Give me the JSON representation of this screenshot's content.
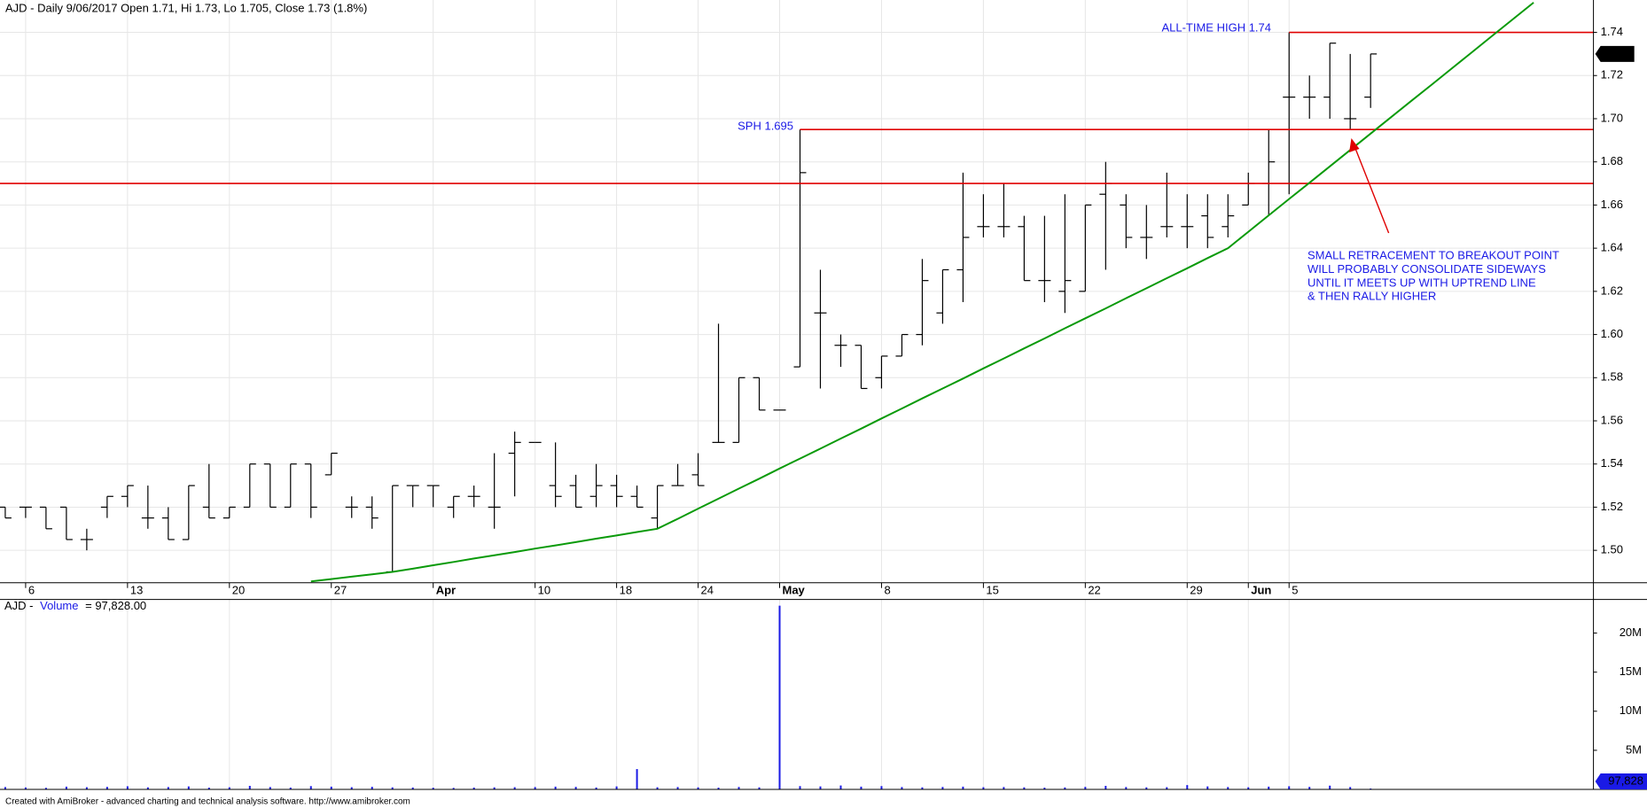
{
  "chart_data": [
    {
      "type": "ohlc",
      "title": "AJD - Daily 9/06/2017 Open 1.71, Hi 1.73, Lo 1.705, Close 1.73 (1.8%)",
      "categories": [
        null,
        "6",
        null,
        null,
        null,
        null,
        "13",
        null,
        null,
        null,
        null,
        "20",
        null,
        null,
        null,
        null,
        "27",
        null,
        null,
        null,
        null,
        "Apr",
        null,
        null,
        null,
        null,
        "10",
        null,
        null,
        null,
        "18",
        null,
        null,
        null,
        "24",
        null,
        null,
        null,
        "May",
        null,
        null,
        null,
        null,
        "8",
        null,
        null,
        null,
        null,
        "15",
        null,
        null,
        null,
        null,
        "22",
        null,
        null,
        null,
        null,
        "29",
        null,
        null,
        "Jun",
        null,
        "5",
        null,
        null,
        null,
        null,
        null,
        null,
        null,
        null,
        null,
        null,
        null,
        null,
        null,
        null
      ],
      "open": [
        1.52,
        1.52,
        1.52,
        1.52,
        1.505,
        1.52,
        1.525,
        1.515,
        1.515,
        1.505,
        1.52,
        1.515,
        1.52,
        1.54,
        1.52,
        1.54,
        1.535,
        1.52,
        1.52,
        1.49,
        1.53,
        1.53,
        1.52,
        1.525,
        1.52,
        1.545,
        1.55,
        1.53,
        1.53,
        1.525,
        1.53,
        1.525,
        1.515,
        1.53,
        1.535,
        1.55,
        1.55,
        1.58,
        1.565,
        1.585,
        1.61,
        1.595,
        1.595,
        1.58,
        1.59,
        1.6,
        1.61,
        1.63,
        1.65,
        1.65,
        1.65,
        1.625,
        1.62,
        1.62,
        1.665,
        1.66,
        1.645,
        1.65,
        1.65,
        1.655,
        1.65,
        1.66,
        1.67,
        1.71,
        1.71,
        1.71,
        1.7,
        1.71,
        null,
        null,
        null,
        null,
        null,
        null,
        null,
        null,
        null,
        null
      ],
      "high": [
        1.52,
        1.52,
        1.52,
        1.52,
        1.51,
        1.525,
        1.53,
        1.53,
        1.52,
        1.53,
        1.54,
        1.52,
        1.54,
        1.54,
        1.54,
        1.54,
        1.545,
        1.525,
        1.525,
        1.53,
        1.53,
        1.53,
        1.525,
        1.53,
        1.545,
        1.555,
        1.55,
        1.55,
        1.535,
        1.54,
        1.535,
        1.53,
        1.53,
        1.54,
        1.545,
        1.605,
        1.58,
        1.58,
        1.565,
        1.695,
        1.63,
        1.6,
        1.595,
        1.59,
        1.6,
        1.635,
        1.63,
        1.675,
        1.665,
        1.67,
        1.655,
        1.655,
        1.665,
        1.66,
        1.68,
        1.665,
        1.66,
        1.675,
        1.665,
        1.665,
        1.665,
        1.675,
        1.695,
        1.74,
        1.72,
        1.735,
        1.73,
        1.73,
        null,
        null,
        null,
        null,
        null,
        null,
        null,
        null,
        null,
        null
      ],
      "low": [
        1.515,
        1.515,
        1.51,
        1.505,
        1.5,
        1.515,
        1.52,
        1.51,
        1.505,
        1.505,
        1.515,
        1.515,
        1.52,
        1.52,
        1.52,
        1.515,
        1.535,
        1.515,
        1.51,
        1.49,
        1.52,
        1.52,
        1.515,
        1.52,
        1.51,
        1.525,
        1.55,
        1.52,
        1.52,
        1.52,
        1.52,
        1.52,
        1.51,
        1.53,
        1.53,
        1.55,
        1.55,
        1.565,
        1.565,
        1.585,
        1.575,
        1.585,
        1.575,
        1.575,
        1.59,
        1.595,
        1.605,
        1.615,
        1.645,
        1.645,
        1.625,
        1.615,
        1.61,
        1.62,
        1.63,
        1.64,
        1.635,
        1.645,
        1.64,
        1.64,
        1.645,
        1.66,
        1.655,
        1.665,
        1.7,
        1.7,
        1.695,
        1.705,
        null,
        null,
        null,
        null,
        null,
        null,
        null,
        null,
        null,
        null
      ],
      "close": [
        1.515,
        1.52,
        1.51,
        1.505,
        1.505,
        1.525,
        1.53,
        1.515,
        1.505,
        1.53,
        1.515,
        1.52,
        1.54,
        1.52,
        1.54,
        1.52,
        1.545,
        1.52,
        1.515,
        1.53,
        1.53,
        1.53,
        1.525,
        1.525,
        1.52,
        1.55,
        1.55,
        1.525,
        1.52,
        1.53,
        1.525,
        1.52,
        1.53,
        1.53,
        1.53,
        1.55,
        1.58,
        1.565,
        1.565,
        1.675,
        1.61,
        1.595,
        1.575,
        1.59,
        1.6,
        1.625,
        1.63,
        1.645,
        1.65,
        1.65,
        1.625,
        1.625,
        1.625,
        1.66,
        1.67,
        1.645,
        1.645,
        1.65,
        1.65,
        1.645,
        1.655,
        1.67,
        1.68,
        1.71,
        1.71,
        1.735,
        1.7,
        1.73,
        null,
        null,
        null,
        null,
        null,
        null,
        null,
        null,
        null,
        null
      ],
      "color": "#000000",
      "trendline": {
        "color": "#0a9a0a",
        "values": [
          null,
          null,
          null,
          null,
          null,
          null,
          null,
          null,
          null,
          null,
          null,
          null,
          null,
          null,
          null,
          1.4856,
          1.4867,
          1.4878,
          1.4889,
          1.49,
          1.4915,
          1.4931,
          1.4946,
          1.4962,
          1.4977,
          1.4992,
          1.5008,
          1.5023,
          1.5038,
          1.5054,
          1.5069,
          1.5085,
          1.51,
          1.5146,
          1.5193,
          1.5239,
          1.5286,
          1.5332,
          1.5379,
          1.5425,
          1.5471,
          1.5518,
          1.5564,
          1.5611,
          1.5657,
          1.5704,
          1.575,
          1.5796,
          1.5843,
          1.5889,
          1.5936,
          1.5982,
          1.6029,
          1.6075,
          1.6121,
          1.6168,
          1.6214,
          1.6261,
          1.6307,
          1.6354,
          1.64,
          1.6476,
          1.6552,
          1.6628,
          1.6703,
          1.6779,
          1.6855,
          1.6931,
          1.7007,
          1.7083,
          1.7158,
          1.7234,
          1.731,
          1.7386,
          1.7462,
          1.7538,
          null,
          null
        ]
      },
      "levels": [
        {
          "value": 1.67,
          "color": "#e00000",
          "span": "full"
        },
        {
          "value": 1.695,
          "color": "#e00000",
          "span": "from-high"
        },
        {
          "value": 1.74,
          "color": "#e00000",
          "span": "from-high"
        }
      ],
      "annotations": {
        "ath": "ALL-TIME HIGH 1.74",
        "sph": "SPH 1.695",
        "note": [
          "SMALL RETRACEMENT TO BREAKOUT POINT",
          "WILL PROBABLY CONSOLIDATE SIDEWAYS",
          "UNTIL IT MEETS UP WITH UPTREND LINE",
          "& THEN RALLY HIGHER"
        ]
      },
      "close_label": "1.73",
      "ylim": [
        1.485,
        1.755
      ],
      "yticks": [
        {
          "value": 1.5,
          "label": "1.50"
        },
        1.52,
        1.54,
        1.56,
        1.58,
        {
          "value": 1.6,
          "label": "1.60"
        },
        1.62,
        1.64,
        1.66,
        1.68,
        {
          "value": 1.7,
          "label": "1.70"
        },
        1.72,
        1.74
      ],
      "grid": true
    },
    {
      "type": "bar",
      "title_parts": [
        "AJD -",
        "Volume",
        "= 97,828.00"
      ],
      "values": [
        300000,
        250000,
        200000,
        350000,
        280000,
        320000,
        400000,
        260000,
        300000,
        380000,
        220000,
        270000,
        450000,
        300000,
        230000,
        420000,
        350000,
        280000,
        330000,
        260000,
        240000,
        210000,
        190000,
        230000,
        260000,
        280000,
        300000,
        350000,
        320000,
        240000,
        380000,
        2600000,
        270000,
        300000,
        260000,
        220000,
        310000,
        260000,
        23500000,
        420000,
        380000,
        500000,
        350000,
        420000,
        300000,
        260000,
        310000,
        350000,
        280000,
        300000,
        260000,
        220000,
        250000,
        320000,
        450000,
        300000,
        260000,
        280000,
        550000,
        380000,
        300000,
        270000,
        350000,
        400000,
        320000,
        480000,
        300000,
        97828,
        null,
        null,
        null,
        null,
        null,
        null,
        null,
        null,
        null,
        null
      ],
      "color": "#1a1ae6",
      "last_label": "97,828",
      "ylim": [
        0,
        24300000
      ],
      "yticks": [
        {
          "value": 5000000,
          "label": "5M"
        },
        {
          "value": 10000000,
          "label": "10M"
        },
        {
          "value": 15000000,
          "label": "15M"
        },
        {
          "value": 20000000,
          "label": "20M"
        }
      ],
      "grid": false
    }
  ],
  "footer": "Created with AmiBroker - advanced charting and technical analysis software. http://www.amibroker.com"
}
